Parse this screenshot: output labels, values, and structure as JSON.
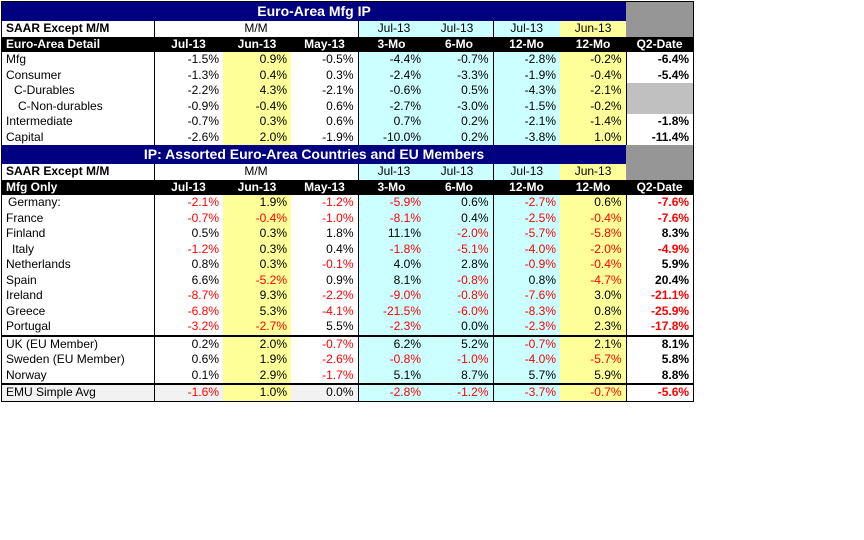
{
  "top_title": "Euro-Area Mfg IP",
  "mid_title": "IP: Assorted Euro-Area Countries and EU Members",
  "section1": {
    "header_row1": [
      "SAAR Except M/M",
      "M/M",
      "Jul-13",
      "Jul-13",
      "Jul-13",
      "Jun-13"
    ],
    "header_row2": [
      "Euro-Area Detail",
      "Jul-13",
      "Jun-13",
      "May-13",
      "3-Mo",
      "6-Mo",
      "12-Mo",
      "12-Mo",
      "Q2-Date"
    ],
    "rows": [
      {
        "label": "Mfg",
        "values": [
          "-1.5%",
          "0.9%",
          "-0.5%",
          "-4.4%",
          "-0.7%",
          "-2.8%",
          "-0.2%",
          "-6.4%"
        ]
      },
      {
        "label": "Consumer",
        "values": [
          "-1.3%",
          "0.4%",
          "0.3%",
          "-2.4%",
          "-3.3%",
          "-1.9%",
          "-0.4%",
          "-5.4%"
        ]
      },
      {
        "label": "C-Durables",
        "values": [
          "-2.2%",
          "4.3%",
          "-2.1%",
          "-0.6%",
          "0.5%",
          "-4.3%",
          "-2.1%",
          ""
        ]
      },
      {
        "label": "C-Non-durables",
        "values": [
          "-0.9%",
          "-0.4%",
          "0.6%",
          "-2.7%",
          "-3.0%",
          "-1.5%",
          "-0.2%",
          ""
        ]
      },
      {
        "label": "Intermediate",
        "values": [
          "-0.7%",
          "0.3%",
          "0.6%",
          "0.7%",
          "0.2%",
          "-2.1%",
          "-1.4%",
          "-1.8%"
        ]
      },
      {
        "label": "Capital",
        "values": [
          "-2.6%",
          "2.0%",
          "-1.9%",
          "-10.0%",
          "0.2%",
          "-3.8%",
          "1.0%",
          "-11.4%"
        ]
      }
    ]
  },
  "section2": {
    "header_row1": [
      "SAAR Except M/M",
      "M/M",
      "Jul-13",
      "Jul-13",
      "Jul-13",
      "Jun-13"
    ],
    "header_row2": [
      "Mfg Only",
      "Jul-13",
      "Jun-13",
      "May-13",
      "3-Mo",
      "6-Mo",
      "12-Mo",
      "12-Mo",
      "Q2-Date"
    ],
    "rows": [
      {
        "label": "Germany:",
        "values": [
          "-2.1%",
          "1.9%",
          "-1.2%",
          "-5.9%",
          "0.6%",
          "-2.7%",
          "0.6%",
          "-7.6%"
        ]
      },
      {
        "label": "France",
        "values": [
          "-0.7%",
          "-0.4%",
          "-1.0%",
          "-8.1%",
          "0.4%",
          "-2.5%",
          "-0.4%",
          "-7.6%"
        ]
      },
      {
        "label": "Finland",
        "values": [
          "0.5%",
          "0.3%",
          "1.8%",
          "11.1%",
          "-2.0%",
          "-5.7%",
          "-5.8%",
          "8.3%"
        ]
      },
      {
        "label": "Italy",
        "values": [
          "-1.2%",
          "0.3%",
          "0.4%",
          "-1.8%",
          "-5.1%",
          "-4.0%",
          "-2.0%",
          "-4.9%"
        ]
      },
      {
        "label": "Netherlands",
        "values": [
          "0.8%",
          "0.3%",
          "-0.1%",
          "4.0%",
          "2.8%",
          "-0.9%",
          "-0.4%",
          "5.9%"
        ]
      },
      {
        "label": "Spain",
        "values": [
          "6.6%",
          "-5.2%",
          "0.9%",
          "8.1%",
          "-0.8%",
          "0.8%",
          "-4.7%",
          "20.4%"
        ]
      },
      {
        "label": "Ireland",
        "values": [
          "-8.7%",
          "9.3%",
          "-2.2%",
          "-9.0%",
          "-0.8%",
          "-7.6%",
          "3.0%",
          "-21.1%"
        ]
      },
      {
        "label": "Greece",
        "values": [
          "-6.8%",
          "5.3%",
          "-4.1%",
          "-21.5%",
          "-6.0%",
          "-8.3%",
          "0.8%",
          "-25.9%"
        ]
      },
      {
        "label": "Portugal",
        "values": [
          "-3.2%",
          "-2.7%",
          "5.5%",
          "-2.3%",
          "0.0%",
          "-2.3%",
          "2.3%",
          "-17.8%"
        ]
      }
    ],
    "eu_rows": [
      {
        "label": "UK (EU Member)",
        "values": [
          "0.2%",
          "2.0%",
          "-0.7%",
          "6.2%",
          "5.2%",
          "-0.7%",
          "2.1%",
          "8.1%"
        ]
      },
      {
        "label": "Sweden (EU Member)",
        "values": [
          "0.6%",
          "1.9%",
          "-2.6%",
          "-0.8%",
          "-1.0%",
          "-4.0%",
          "-5.7%",
          "5.8%"
        ]
      },
      {
        "label": "Norway",
        "values": [
          "0.1%",
          "2.9%",
          "-1.7%",
          "5.1%",
          "8.7%",
          "5.7%",
          "5.9%",
          "8.8%"
        ]
      }
    ],
    "emu_row": {
      "label": "EMU Simple Avg",
      "values": [
        "-1.6%",
        "1.0%",
        "0.0%",
        "-2.8%",
        "-1.2%",
        "-3.7%",
        "-0.7%",
        "-5.6%"
      ]
    }
  },
  "colors": {
    "cyan": "#ccffff",
    "yellow": "#ffff99",
    "navy": "#000080",
    "gray": "#969696",
    "negative": "#ff0000"
  }
}
